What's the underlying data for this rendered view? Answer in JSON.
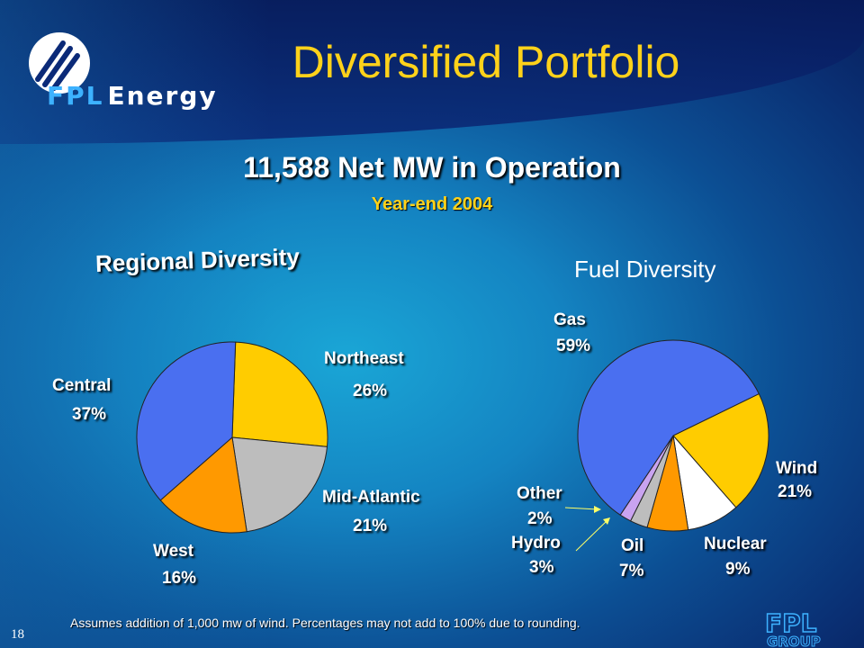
{
  "logo": {
    "brand_a": "FPL",
    "brand_b": "Energy"
  },
  "title": "Diversified Portfolio",
  "subtitle": "11,588 Net MW in Operation",
  "year_end": "Year-end 2004",
  "footnote": "Assumes addition of 1,000 mw of wind. Percentages may not add to 100% due to rounding.",
  "page_number": "18",
  "corner_logo": {
    "line1": "FPL",
    "line2": "GROUP"
  },
  "colors": {
    "title": "#ffd21a",
    "blue": "#4a6ff0",
    "yellow": "#ffcc00",
    "gray": "#bdbdbd",
    "orange": "#ff9900",
    "white": "#ffffff",
    "lavender": "#c9a3f0"
  },
  "chart_data": [
    {
      "type": "pie",
      "title": "Regional Diversity",
      "slices": [
        {
          "label": "Northeast",
          "value_label": "26%",
          "value": 26,
          "color": "#ffcc00"
        },
        {
          "label": "Mid-Atlantic",
          "value_label": "21%",
          "value": 21,
          "color": "#bdbdbd"
        },
        {
          "label": "West",
          "value_label": "16%",
          "value": 16,
          "color": "#ff9900"
        },
        {
          "label": "Central",
          "value_label": "37%",
          "value": 37,
          "color": "#4a6ff0"
        }
      ]
    },
    {
      "type": "pie",
      "title": "Fuel Diversity",
      "slices": [
        {
          "label": "Wind",
          "value_label": "21%",
          "value": 21,
          "color": "#ffcc00"
        },
        {
          "label": "Nuclear",
          "value_label": "9%",
          "value": 9,
          "color": "#ffffff"
        },
        {
          "label": "Oil",
          "value_label": "7%",
          "value": 7,
          "color": "#ff9900"
        },
        {
          "label": "Hydro",
          "value_label": "3%",
          "value": 3,
          "color": "#bdbdbd"
        },
        {
          "label": "Other",
          "value_label": "2%",
          "value": 2,
          "color": "#c9a3f0"
        },
        {
          "label": "Gas",
          "value_label": "59%",
          "value": 59,
          "color": "#4a6ff0"
        }
      ]
    }
  ]
}
